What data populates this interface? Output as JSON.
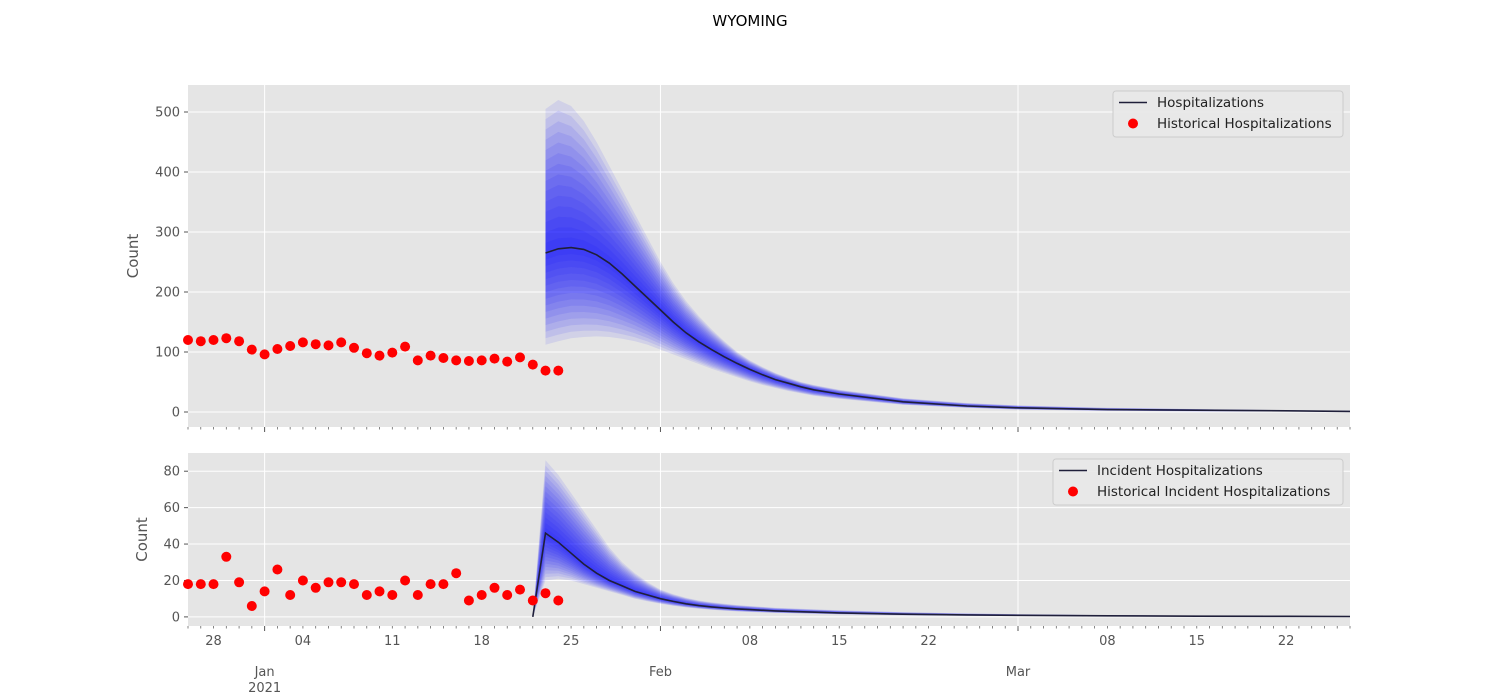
{
  "figure": {
    "title": "WYOMING"
  },
  "colors": {
    "panel_bg": "#e5e5e5",
    "grid": "#ffffff",
    "median_line": "#1f1f3a",
    "historical_points": "#ff0000",
    "fan_fill": "#0000ff"
  },
  "chart_data": [
    {
      "type": "line",
      "title": "",
      "xlabel": "",
      "ylabel": "Count",
      "xlim": [
        "2020-12-26",
        "2021-03-27"
      ],
      "ylim": [
        -25,
        545
      ],
      "yticks": [
        0,
        100,
        200,
        300,
        400,
        500
      ],
      "xtick_labels": {
        "major": [
          {
            "date": "2021-01-01",
            "label": "Jan\n2021"
          },
          {
            "date": "2021-02-01",
            "label": "Feb"
          },
          {
            "date": "2021-03-01",
            "label": "Mar"
          }
        ],
        "minor": [
          {
            "date": "2020-12-28",
            "label": "28"
          },
          {
            "date": "2021-01-04",
            "label": "04"
          },
          {
            "date": "2021-01-11",
            "label": "11"
          },
          {
            "date": "2021-01-18",
            "label": "18"
          },
          {
            "date": "2021-01-25",
            "label": "25"
          },
          {
            "date": "2021-02-08",
            "label": "08"
          },
          {
            "date": "2021-02-15",
            "label": "15"
          },
          {
            "date": "2021-02-22",
            "label": "22"
          },
          {
            "date": "2021-03-08",
            "label": "08"
          },
          {
            "date": "2021-03-15",
            "label": "15"
          },
          {
            "date": "2021-03-22",
            "label": "22"
          }
        ],
        "show_labels": false
      },
      "grid": true,
      "legend_position": "top-right",
      "series": [
        {
          "name": "Hospitalizations",
          "kind": "line",
          "x": [
            "2021-01-23",
            "2021-01-24",
            "2021-01-25",
            "2021-01-26",
            "2021-01-27",
            "2021-01-28",
            "2021-01-29",
            "2021-01-30",
            "2021-01-31",
            "2021-02-01",
            "2021-02-02",
            "2021-02-03",
            "2021-02-04",
            "2021-02-05",
            "2021-02-06",
            "2021-02-07",
            "2021-02-08",
            "2021-02-09",
            "2021-02-10",
            "2021-02-11",
            "2021-02-12",
            "2021-02-13",
            "2021-02-15",
            "2021-02-20",
            "2021-02-25",
            "2021-03-01",
            "2021-03-08",
            "2021-03-15",
            "2021-03-22",
            "2021-03-27"
          ],
          "y": [
            265,
            272,
            274,
            271,
            262,
            248,
            230,
            210,
            190,
            170,
            150,
            132,
            117,
            104,
            92,
            81,
            71,
            62,
            54,
            48,
            42,
            37,
            30,
            17,
            10,
            7,
            4,
            3,
            2,
            1
          ],
          "upper": [
            505,
            520,
            510,
            485,
            450,
            410,
            370,
            330,
            290,
            250,
            215,
            185,
            160,
            138,
            118,
            100,
            86,
            75,
            65,
            57,
            50,
            45,
            37,
            23,
            15,
            11,
            7,
            5,
            3,
            2
          ],
          "lower": [
            112,
            118,
            123,
            125,
            126,
            125,
            122,
            118,
            112,
            104,
            96,
            88,
            80,
            72,
            65,
            58,
            51,
            45,
            40,
            35,
            31,
            27,
            22,
            12,
            7,
            4,
            2,
            1,
            1,
            0
          ]
        },
        {
          "name": "Historical Hospitalizations",
          "kind": "scatter",
          "x": [
            "2020-12-26",
            "2020-12-27",
            "2020-12-28",
            "2020-12-29",
            "2020-12-30",
            "2020-12-31",
            "2021-01-01",
            "2021-01-02",
            "2021-01-03",
            "2021-01-04",
            "2021-01-05",
            "2021-01-06",
            "2021-01-07",
            "2021-01-08",
            "2021-01-09",
            "2021-01-10",
            "2021-01-11",
            "2021-01-12",
            "2021-01-13",
            "2021-01-14",
            "2021-01-15",
            "2021-01-16",
            "2021-01-17",
            "2021-01-18",
            "2021-01-19",
            "2021-01-20",
            "2021-01-21",
            "2021-01-22",
            "2021-01-23",
            "2021-01-24"
          ],
          "y": [
            120,
            118,
            120,
            123,
            118,
            104,
            96,
            105,
            110,
            116,
            113,
            111,
            116,
            107,
            98,
            94,
            99,
            109,
            86,
            94,
            90,
            86,
            85,
            86,
            89,
            84,
            91,
            79,
            69,
            69
          ]
        }
      ]
    },
    {
      "type": "line",
      "title": "",
      "xlabel": "",
      "ylabel": "Count",
      "xlim": [
        "2020-12-26",
        "2021-03-27"
      ],
      "ylim": [
        -5,
        90
      ],
      "yticks": [
        0,
        20,
        40,
        60,
        80
      ],
      "xtick_labels": {
        "major": [
          {
            "date": "2021-01-01",
            "label": "Jan\n2021"
          },
          {
            "date": "2021-02-01",
            "label": "Feb"
          },
          {
            "date": "2021-03-01",
            "label": "Mar"
          }
        ],
        "minor": [
          {
            "date": "2020-12-28",
            "label": "28"
          },
          {
            "date": "2021-01-04",
            "label": "04"
          },
          {
            "date": "2021-01-11",
            "label": "11"
          },
          {
            "date": "2021-01-18",
            "label": "18"
          },
          {
            "date": "2021-01-25",
            "label": "25"
          },
          {
            "date": "2021-02-08",
            "label": "08"
          },
          {
            "date": "2021-02-15",
            "label": "15"
          },
          {
            "date": "2021-02-22",
            "label": "22"
          },
          {
            "date": "2021-03-08",
            "label": "08"
          },
          {
            "date": "2021-03-15",
            "label": "15"
          },
          {
            "date": "2021-03-22",
            "label": "22"
          }
        ],
        "show_labels": true
      },
      "grid": true,
      "legend_position": "top-right",
      "series": [
        {
          "name": "Incident Hospitalizations",
          "kind": "line",
          "x": [
            "2021-01-22",
            "2021-01-23",
            "2021-01-24",
            "2021-01-25",
            "2021-01-26",
            "2021-01-27",
            "2021-01-28",
            "2021-01-29",
            "2021-01-30",
            "2021-01-31",
            "2021-02-01",
            "2021-02-02",
            "2021-02-03",
            "2021-02-04",
            "2021-02-05",
            "2021-02-06",
            "2021-02-07",
            "2021-02-08",
            "2021-02-10",
            "2021-02-15",
            "2021-02-20",
            "2021-02-25",
            "2021-03-01",
            "2021-03-08",
            "2021-03-15",
            "2021-03-22",
            "2021-03-27"
          ],
          "y": [
            0,
            46,
            41,
            35,
            29,
            24,
            20,
            17,
            14,
            12,
            10,
            8.5,
            7.2,
            6.2,
            5.5,
            4.9,
            4.4,
            4.0,
            3.3,
            2.2,
            1.5,
            1.1,
            0.9,
            0.6,
            0.4,
            0.3,
            0.2
          ],
          "upper": [
            0,
            86,
            78,
            68,
            58,
            48,
            38,
            30,
            24,
            19,
            15,
            12.5,
            10.5,
            9,
            8,
            7.2,
            6.5,
            6,
            5,
            3.6,
            2.6,
            1.9,
            1.5,
            1.0,
            0.7,
            0.5,
            0.4
          ],
          "lower": [
            0,
            20,
            21,
            20,
            18,
            16,
            14,
            12,
            10,
            8.5,
            7.2,
            6.1,
            5.2,
            4.5,
            3.9,
            3.4,
            3.0,
            2.7,
            2.2,
            1.4,
            0.9,
            0.6,
            0.5,
            0.3,
            0.2,
            0.1,
            0.1
          ]
        },
        {
          "name": "Historical Incident Hospitalizations",
          "kind": "scatter",
          "x": [
            "2020-12-26",
            "2020-12-27",
            "2020-12-28",
            "2020-12-29",
            "2020-12-30",
            "2020-12-31",
            "2021-01-01",
            "2021-01-02",
            "2021-01-03",
            "2021-01-04",
            "2021-01-05",
            "2021-01-06",
            "2021-01-07",
            "2021-01-08",
            "2021-01-09",
            "2021-01-10",
            "2021-01-11",
            "2021-01-12",
            "2021-01-13",
            "2021-01-14",
            "2021-01-15",
            "2021-01-16",
            "2021-01-17",
            "2021-01-18",
            "2021-01-19",
            "2021-01-20",
            "2021-01-21",
            "2021-01-22",
            "2021-01-23",
            "2021-01-24"
          ],
          "y": [
            18,
            18,
            18,
            33,
            19,
            6,
            14,
            26,
            12,
            20,
            16,
            19,
            19,
            18,
            12,
            14,
            12,
            20,
            12,
            18,
            18,
            24,
            9,
            12,
            16,
            12,
            15,
            9,
            13,
            9
          ]
        }
      ]
    }
  ]
}
